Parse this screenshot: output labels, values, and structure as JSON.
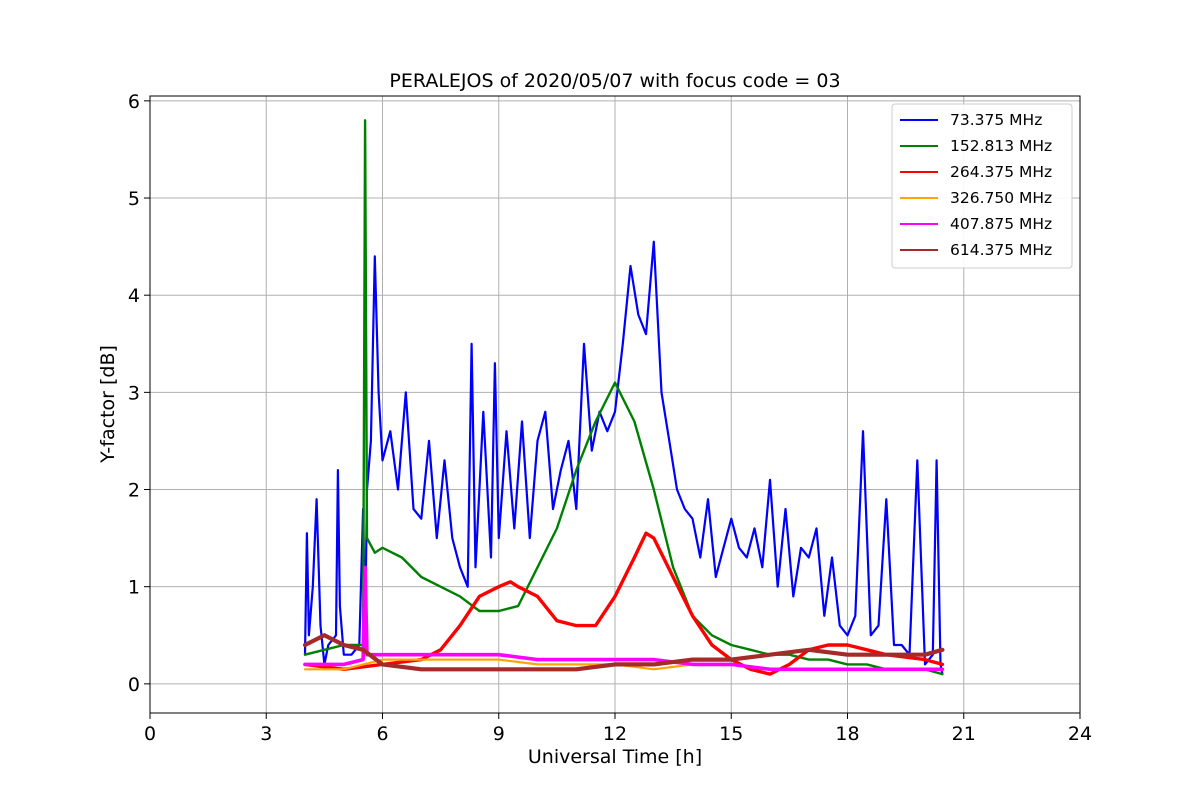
{
  "chart_data": {
    "type": "line",
    "title": "PERALEJOS of 2020/05/07 with focus code = 03",
    "xlabel": "Universal Time [h]",
    "ylabel": "Y-factor [dB]",
    "xlim": [
      0,
      24
    ],
    "ylim": [
      -0.3,
      6.05
    ],
    "xticks": [
      0,
      3,
      6,
      9,
      12,
      15,
      18,
      21,
      24
    ],
    "yticks": [
      0,
      1,
      2,
      3,
      4,
      5,
      6
    ],
    "xtick_labels": [
      "0",
      "3",
      "6",
      "9",
      "12",
      "15",
      "18",
      "21",
      "24"
    ],
    "ytick_labels": [
      "0",
      "1",
      "2",
      "3",
      "4",
      "5",
      "6"
    ],
    "grid": true,
    "legend_position": "top-right",
    "series": [
      {
        "name": " 73.375 MHz",
        "color": "#0000ff",
        "points": [
          [
            4.0,
            0.3
          ],
          [
            4.05,
            1.55
          ],
          [
            4.1,
            0.5
          ],
          [
            4.2,
            1.0
          ],
          [
            4.3,
            1.9
          ],
          [
            4.4,
            0.6
          ],
          [
            4.5,
            0.2
          ],
          [
            4.6,
            0.4
          ],
          [
            4.8,
            0.5
          ],
          [
            4.85,
            2.2
          ],
          [
            4.9,
            0.8
          ],
          [
            5.0,
            0.3
          ],
          [
            5.2,
            0.3
          ],
          [
            5.4,
            0.4
          ],
          [
            5.5,
            1.8
          ],
          [
            5.55,
            0.5
          ],
          [
            5.6,
            2.0
          ],
          [
            5.7,
            2.5
          ],
          [
            5.8,
            4.4
          ],
          [
            5.9,
            3.0
          ],
          [
            6.0,
            2.3
          ],
          [
            6.2,
            2.6
          ],
          [
            6.4,
            2.0
          ],
          [
            6.6,
            3.0
          ],
          [
            6.8,
            1.8
          ],
          [
            7.0,
            1.7
          ],
          [
            7.2,
            2.5
          ],
          [
            7.4,
            1.5
          ],
          [
            7.6,
            2.3
          ],
          [
            7.8,
            1.5
          ],
          [
            8.0,
            1.2
          ],
          [
            8.2,
            1.0
          ],
          [
            8.3,
            3.5
          ],
          [
            8.4,
            1.2
          ],
          [
            8.6,
            2.8
          ],
          [
            8.8,
            1.3
          ],
          [
            8.9,
            3.3
          ],
          [
            9.0,
            1.5
          ],
          [
            9.2,
            2.6
          ],
          [
            9.4,
            1.6
          ],
          [
            9.6,
            2.7
          ],
          [
            9.8,
            1.5
          ],
          [
            10.0,
            2.5
          ],
          [
            10.2,
            2.8
          ],
          [
            10.4,
            1.8
          ],
          [
            10.6,
            2.2
          ],
          [
            10.8,
            2.5
          ],
          [
            11.0,
            1.8
          ],
          [
            11.2,
            3.5
          ],
          [
            11.4,
            2.4
          ],
          [
            11.6,
            2.8
          ],
          [
            11.8,
            2.6
          ],
          [
            12.0,
            2.8
          ],
          [
            12.2,
            3.5
          ],
          [
            12.4,
            4.3
          ],
          [
            12.6,
            3.8
          ],
          [
            12.8,
            3.6
          ],
          [
            13.0,
            4.55
          ],
          [
            13.2,
            3.0
          ],
          [
            13.4,
            2.5
          ],
          [
            13.6,
            2.0
          ],
          [
            13.8,
            1.8
          ],
          [
            14.0,
            1.7
          ],
          [
            14.2,
            1.3
          ],
          [
            14.4,
            1.9
          ],
          [
            14.6,
            1.1
          ],
          [
            14.8,
            1.4
          ],
          [
            15.0,
            1.7
          ],
          [
            15.2,
            1.4
          ],
          [
            15.4,
            1.3
          ],
          [
            15.6,
            1.6
          ],
          [
            15.8,
            1.2
          ],
          [
            16.0,
            2.1
          ],
          [
            16.2,
            1.0
          ],
          [
            16.4,
            1.8
          ],
          [
            16.6,
            0.9
          ],
          [
            16.8,
            1.4
          ],
          [
            17.0,
            1.3
          ],
          [
            17.2,
            1.6
          ],
          [
            17.4,
            0.7
          ],
          [
            17.6,
            1.3
          ],
          [
            17.8,
            0.6
          ],
          [
            18.0,
            0.5
          ],
          [
            18.2,
            0.7
          ],
          [
            18.4,
            2.6
          ],
          [
            18.6,
            0.5
          ],
          [
            18.8,
            0.6
          ],
          [
            19.0,
            1.9
          ],
          [
            19.2,
            0.4
          ],
          [
            19.4,
            0.4
          ],
          [
            19.6,
            0.3
          ],
          [
            19.8,
            2.3
          ],
          [
            20.0,
            0.2
          ],
          [
            20.2,
            0.3
          ],
          [
            20.3,
            2.3
          ],
          [
            20.4,
            0.2
          ],
          [
            20.45,
            0.1
          ]
        ]
      },
      {
        "name": "152.813 MHz",
        "color": "#008000",
        "points": [
          [
            4.0,
            0.3
          ],
          [
            4.5,
            0.35
          ],
          [
            5.0,
            0.4
          ],
          [
            5.5,
            0.4
          ],
          [
            5.55,
            5.8
          ],
          [
            5.6,
            1.5
          ],
          [
            5.8,
            1.35
          ],
          [
            6.0,
            1.4
          ],
          [
            6.5,
            1.3
          ],
          [
            7.0,
            1.1
          ],
          [
            7.5,
            1.0
          ],
          [
            8.0,
            0.9
          ],
          [
            8.5,
            0.75
          ],
          [
            9.0,
            0.75
          ],
          [
            9.5,
            0.8
          ],
          [
            10.0,
            1.2
          ],
          [
            10.5,
            1.6
          ],
          [
            11.0,
            2.2
          ],
          [
            11.5,
            2.7
          ],
          [
            12.0,
            3.1
          ],
          [
            12.5,
            2.7
          ],
          [
            13.0,
            2.0
          ],
          [
            13.5,
            1.2
          ],
          [
            14.0,
            0.7
          ],
          [
            14.5,
            0.5
          ],
          [
            15.0,
            0.4
          ],
          [
            15.5,
            0.35
          ],
          [
            16.0,
            0.3
          ],
          [
            16.5,
            0.3
          ],
          [
            17.0,
            0.25
          ],
          [
            17.5,
            0.25
          ],
          [
            18.0,
            0.2
          ],
          [
            18.5,
            0.2
          ],
          [
            19.0,
            0.15
          ],
          [
            19.5,
            0.15
          ],
          [
            20.0,
            0.15
          ],
          [
            20.45,
            0.1
          ]
        ]
      },
      {
        "name": "264.375 MHz",
        "color": "#ff0000",
        "points": [
          [
            4.0,
            0.2
          ],
          [
            5.0,
            0.15
          ],
          [
            6.0,
            0.2
          ],
          [
            7.0,
            0.25
          ],
          [
            7.5,
            0.35
          ],
          [
            8.0,
            0.6
          ],
          [
            8.5,
            0.9
          ],
          [
            9.0,
            1.0
          ],
          [
            9.3,
            1.05
          ],
          [
            9.5,
            1.0
          ],
          [
            10.0,
            0.9
          ],
          [
            10.5,
            0.65
          ],
          [
            11.0,
            0.6
          ],
          [
            11.5,
            0.6
          ],
          [
            12.0,
            0.9
          ],
          [
            12.5,
            1.3
          ],
          [
            12.8,
            1.55
          ],
          [
            13.0,
            1.5
          ],
          [
            13.5,
            1.1
          ],
          [
            14.0,
            0.7
          ],
          [
            14.5,
            0.4
          ],
          [
            15.0,
            0.25
          ],
          [
            15.5,
            0.15
          ],
          [
            16.0,
            0.1
          ],
          [
            16.5,
            0.2
          ],
          [
            17.0,
            0.35
          ],
          [
            17.5,
            0.4
          ],
          [
            18.0,
            0.4
          ],
          [
            18.5,
            0.35
          ],
          [
            19.0,
            0.3
          ],
          [
            20.0,
            0.25
          ],
          [
            20.45,
            0.2
          ]
        ]
      },
      {
        "name": "326.750 MHz",
        "color": "#ffa500",
        "points": [
          [
            4.0,
            0.15
          ],
          [
            5.0,
            0.15
          ],
          [
            6.0,
            0.25
          ],
          [
            7.0,
            0.25
          ],
          [
            8.0,
            0.25
          ],
          [
            9.0,
            0.25
          ],
          [
            10.0,
            0.2
          ],
          [
            11.0,
            0.2
          ],
          [
            12.0,
            0.2
          ],
          [
            13.0,
            0.15
          ],
          [
            14.0,
            0.2
          ],
          [
            15.0,
            0.2
          ],
          [
            16.0,
            0.15
          ],
          [
            17.0,
            0.15
          ],
          [
            18.0,
            0.15
          ],
          [
            19.0,
            0.15
          ],
          [
            20.0,
            0.15
          ],
          [
            20.45,
            0.15
          ]
        ]
      },
      {
        "name": "407.875 MHz",
        "color": "#ff00ff",
        "points": [
          [
            4.0,
            0.2
          ],
          [
            5.0,
            0.2
          ],
          [
            5.5,
            0.25
          ],
          [
            5.55,
            1.2
          ],
          [
            5.6,
            0.3
          ],
          [
            6.0,
            0.3
          ],
          [
            7.0,
            0.3
          ],
          [
            8.0,
            0.3
          ],
          [
            9.0,
            0.3
          ],
          [
            10.0,
            0.25
          ],
          [
            11.0,
            0.25
          ],
          [
            12.0,
            0.25
          ],
          [
            13.0,
            0.25
          ],
          [
            14.0,
            0.2
          ],
          [
            15.0,
            0.2
          ],
          [
            16.0,
            0.15
          ],
          [
            17.0,
            0.15
          ],
          [
            18.0,
            0.15
          ],
          [
            19.0,
            0.15
          ],
          [
            20.0,
            0.15
          ],
          [
            20.45,
            0.15
          ]
        ]
      },
      {
        "name": "614.375 MHz",
        "color": "#a52a2a",
        "points": [
          [
            4.0,
            0.4
          ],
          [
            4.5,
            0.5
          ],
          [
            5.0,
            0.4
          ],
          [
            5.5,
            0.35
          ],
          [
            6.0,
            0.2
          ],
          [
            7.0,
            0.15
          ],
          [
            8.0,
            0.15
          ],
          [
            9.0,
            0.15
          ],
          [
            10.0,
            0.15
          ],
          [
            11.0,
            0.15
          ],
          [
            12.0,
            0.2
          ],
          [
            13.0,
            0.2
          ],
          [
            14.0,
            0.25
          ],
          [
            15.0,
            0.25
          ],
          [
            16.0,
            0.3
          ],
          [
            17.0,
            0.35
          ],
          [
            18.0,
            0.3
          ],
          [
            19.0,
            0.3
          ],
          [
            20.0,
            0.3
          ],
          [
            20.45,
            0.35
          ]
        ]
      }
    ]
  }
}
